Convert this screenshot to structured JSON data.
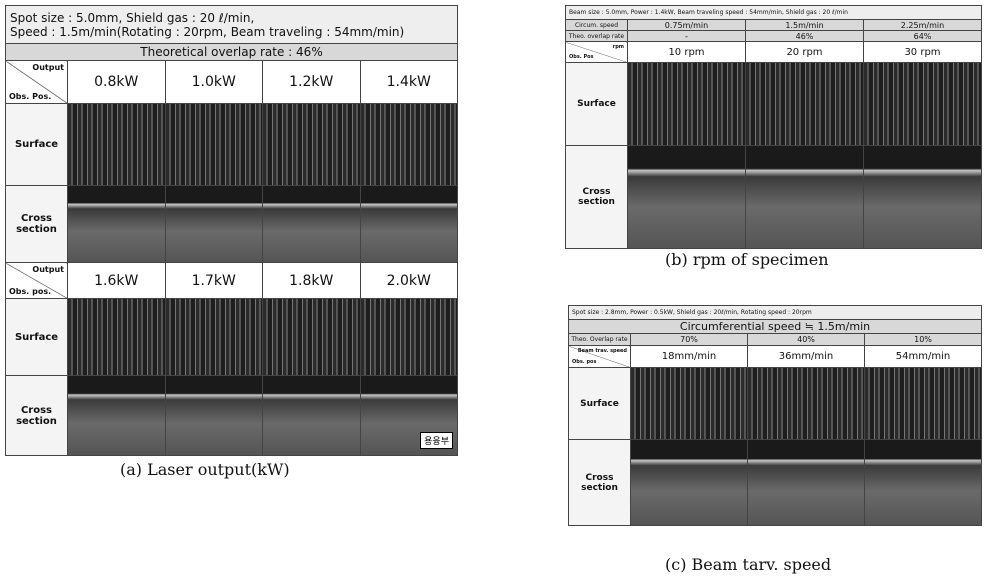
{
  "panel_a": {
    "header": [
      "Spot size : 5.0mm, Shield gas : 20 ℓ/min,",
      "Speed : 1.5m/min(Rotating : 20rpm, Beam traveling : 54mm/min)"
    ],
    "overlap": "Theoretical overlap rate : 46%",
    "blocks": [
      {
        "corner": [
          "Output",
          "Obs. Pos."
        ],
        "columns": [
          "0.8kW",
          "1.0kW",
          "1.2kW",
          "1.4kW"
        ]
      },
      {
        "corner": [
          "Output",
          "Obs. pos."
        ],
        "columns": [
          "1.6kW",
          "1.7kW",
          "1.8kW",
          "2.0kW"
        ]
      }
    ],
    "row_labels": [
      "Surface",
      "Cross section"
    ],
    "inset_label": "용융부",
    "caption": "(a) Laser output(kW)"
  },
  "panel_b": {
    "header": "Beam size : 5.0mm, Power : 1.4kW, Beam traveling speed : 54mm/min, Shield gas : 20 ℓ/min",
    "info_rows": [
      {
        "label": "Circum. speed",
        "values": [
          "0.75m/min",
          "1.5m/min",
          "2.25m/min"
        ]
      },
      {
        "label": "Theo. overlap rate",
        "values": [
          "-",
          "46%",
          "64%"
        ]
      }
    ],
    "corner": [
      "rpm",
      "Obs. Pos"
    ],
    "columns": [
      "10 rpm",
      "20 rpm",
      "30 rpm"
    ],
    "row_labels": [
      "Surface",
      "Cross section"
    ],
    "caption": "(b) rpm of specimen"
  },
  "panel_c": {
    "header": "Spot size : 2.8mm, Power : 0.5kW, Shield gas : 20ℓ/min, Rotating speed : 20rpm",
    "circumferential": "Circumferential speed ≒ 1.5m/min",
    "info_rows": [
      {
        "label": "Theo. Overlap rate",
        "values": [
          "70%",
          "40%",
          "10%"
        ]
      }
    ],
    "corner": [
      "Beam trav. speed",
      "Obs. pos"
    ],
    "columns": [
      "18mm/min",
      "36mm/min",
      "54mm/min"
    ],
    "row_labels": [
      "Surface",
      "Cross section"
    ],
    "caption": "(c) Beam tarv. speed"
  }
}
